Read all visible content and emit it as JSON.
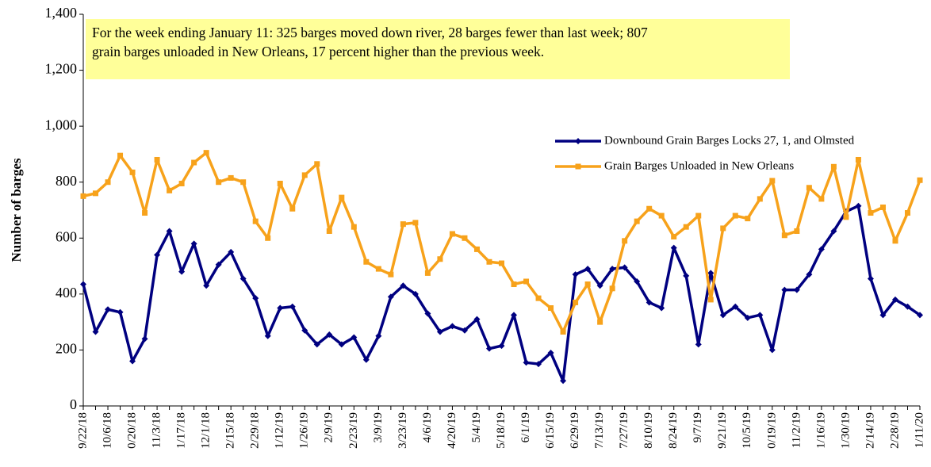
{
  "chart_data": {
    "type": "line",
    "y_label": "Number of barges",
    "annotation": [
      "For the week ending January 11: 325 barges moved down river, 28 barges fewer than last week; 807",
      "grain barges unloaded in New Orleans, 17 percent higher than the previous week."
    ],
    "categories": [
      "9/22/18",
      null,
      "10/6/18",
      null,
      "0/20/18",
      null,
      "11/3/18",
      null,
      "1/17/18",
      null,
      "12/1/18",
      null,
      "2/15/18",
      null,
      "2/29/18",
      null,
      "1/12/19",
      null,
      "1/26/19",
      null,
      "2/9/19",
      null,
      "2/23/19",
      null,
      "3/9/19",
      null,
      "3/23/19",
      null,
      "4/6/19",
      null,
      "4/20/19",
      null,
      "5/4/19",
      null,
      "5/18/19",
      null,
      "6/1/19",
      null,
      "6/15/19",
      null,
      "6/29/19",
      null,
      "7/13/19",
      null,
      "7/27/19",
      null,
      "8/10/19",
      null,
      "8/24/19",
      null,
      "9/7/19",
      null,
      "9/21/19",
      null,
      "10/5/19",
      null,
      "0/19/19",
      null,
      "11/2/19",
      null,
      "1/16/19",
      null,
      "1/30/19",
      null,
      "2/14/19",
      null,
      "2/28/19",
      null,
      "1/11/20"
    ],
    "series": [
      {
        "name": "Downbound Grain Barges Locks 27, 1, and Olmsted",
        "color": "#000080",
        "marker": "diamond",
        "values": [
          435,
          265,
          345,
          335,
          160,
          240,
          540,
          625,
          480,
          580,
          430,
          505,
          550,
          455,
          385,
          250,
          350,
          355,
          270,
          220,
          255,
          220,
          245,
          165,
          250,
          390,
          430,
          400,
          330,
          265,
          285,
          270,
          310,
          205,
          215,
          325,
          155,
          150,
          190,
          90,
          470,
          490,
          430,
          490,
          495,
          445,
          370,
          350,
          565,
          465,
          220,
          475,
          325,
          355,
          315,
          325,
          200,
          415,
          415,
          470,
          560,
          625,
          695,
          715,
          455,
          325,
          380,
          355,
          325
        ]
      },
      {
        "name": "Grain Barges Unloaded in New Orleans",
        "color": "#F7A21B",
        "marker": "square",
        "values": [
          750,
          760,
          800,
          895,
          835,
          690,
          880,
          770,
          795,
          870,
          905,
          800,
          815,
          800,
          660,
          600,
          795,
          705,
          825,
          865,
          625,
          745,
          640,
          515,
          490,
          470,
          650,
          655,
          475,
          525,
          615,
          600,
          560,
          515,
          510,
          435,
          445,
          385,
          350,
          265,
          370,
          435,
          300,
          420,
          590,
          660,
          705,
          680,
          605,
          640,
          680,
          380,
          635,
          680,
          670,
          740,
          805,
          610,
          625,
          780,
          740,
          855,
          675,
          880,
          690,
          710,
          590,
          690,
          807
        ]
      }
    ],
    "ylim": [
      0,
      1400
    ],
    "yticks": [
      0,
      200,
      400,
      600,
      800,
      {
        "value": 1000,
        "label": "1,000"
      },
      {
        "value": 1200,
        "label": "1,200"
      },
      {
        "value": 1400,
        "label": "1,400"
      }
    ],
    "grid": false
  }
}
